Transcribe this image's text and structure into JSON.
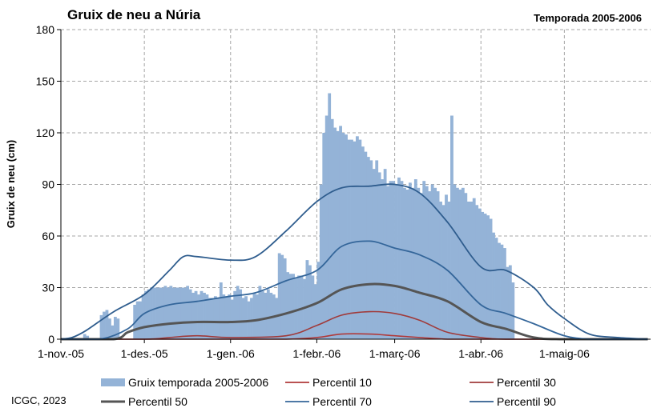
{
  "header": {
    "title": "Gruix de neu a Núria",
    "season": "Temporada 2005-2006"
  },
  "credit": "ICGC, 2023",
  "colors": {
    "bars": "#94b3d7",
    "p10": "#b03a3a",
    "p30": "#a03b3b",
    "p50": "#555555",
    "p70": "#34669a",
    "p90": "#2f5d8e",
    "grid": "#a6a6a6"
  },
  "chart_data": {
    "type": "bar",
    "title": "Gruix de neu a Núria",
    "subtitle": "Temporada 2005-2006",
    "xlabel": "",
    "ylabel": "Gruix de neu (cm)",
    "ylim": [
      0,
      180
    ],
    "yticks": [
      0,
      30,
      60,
      90,
      120,
      150,
      180
    ],
    "xlim": [
      "2005-11-01",
      "2006-05-31"
    ],
    "xticks": [
      {
        "date": "2005-11-01",
        "label": "1-nov.-05"
      },
      {
        "date": "2005-12-01",
        "label": "1-des.-05"
      },
      {
        "date": "2006-01-01",
        "label": "1-gen.-06"
      },
      {
        "date": "2006-02-01",
        "label": "1-febr.-06"
      },
      {
        "date": "2006-03-01",
        "label": "1-març-06"
      },
      {
        "date": "2006-04-01",
        "label": "1-abr.-06"
      },
      {
        "date": "2006-05-01",
        "label": "1-maig-06"
      }
    ],
    "grid": true,
    "legend_position": "bottom",
    "series": [
      {
        "name": "Gruix temporada 2005-2006",
        "type": "bar",
        "x": [
          "2005-11-09",
          "2005-11-10",
          "2005-11-11",
          "2005-11-15",
          "2005-11-16",
          "2005-11-17",
          "2005-11-18",
          "2005-11-19",
          "2005-11-20",
          "2005-11-21",
          "2005-11-27",
          "2005-11-28",
          "2005-11-29",
          "2005-11-30",
          "2005-12-01",
          "2005-12-02",
          "2005-12-03",
          "2005-12-04",
          "2005-12-05",
          "2005-12-06",
          "2005-12-07",
          "2005-12-08",
          "2005-12-09",
          "2005-12-10",
          "2005-12-11",
          "2005-12-12",
          "2005-12-13",
          "2005-12-14",
          "2005-12-15",
          "2005-12-16",
          "2005-12-17",
          "2005-12-18",
          "2005-12-19",
          "2005-12-20",
          "2005-12-21",
          "2005-12-22",
          "2005-12-23",
          "2005-12-24",
          "2005-12-25",
          "2005-12-26",
          "2005-12-27",
          "2005-12-28",
          "2005-12-29",
          "2005-12-30",
          "2005-12-31",
          "2006-01-01",
          "2006-01-02",
          "2006-01-03",
          "2006-01-04",
          "2006-01-05",
          "2006-01-06",
          "2006-01-07",
          "2006-01-08",
          "2006-01-09",
          "2006-01-10",
          "2006-01-11",
          "2006-01-12",
          "2006-01-13",
          "2006-01-14",
          "2006-01-15",
          "2006-01-16",
          "2006-01-17",
          "2006-01-18",
          "2006-01-19",
          "2006-01-20",
          "2006-01-21",
          "2006-01-22",
          "2006-01-23",
          "2006-01-24",
          "2006-01-25",
          "2006-01-26",
          "2006-01-27",
          "2006-01-28",
          "2006-01-29",
          "2006-01-30",
          "2006-01-31",
          "2006-02-01",
          "2006-02-02",
          "2006-02-03",
          "2006-02-04",
          "2006-02-05",
          "2006-02-06",
          "2006-02-07",
          "2006-02-08",
          "2006-02-09",
          "2006-02-10",
          "2006-02-11",
          "2006-02-12",
          "2006-02-13",
          "2006-02-14",
          "2006-02-15",
          "2006-02-16",
          "2006-02-17",
          "2006-02-18",
          "2006-02-19",
          "2006-02-20",
          "2006-02-21",
          "2006-02-22",
          "2006-02-23",
          "2006-02-24",
          "2006-02-25",
          "2006-02-26",
          "2006-02-27",
          "2006-02-28",
          "2006-03-01",
          "2006-03-02",
          "2006-03-03",
          "2006-03-04",
          "2006-03-05",
          "2006-03-06",
          "2006-03-07",
          "2006-03-08",
          "2006-03-09",
          "2006-03-10",
          "2006-03-11",
          "2006-03-12",
          "2006-03-13",
          "2006-03-14",
          "2006-03-15",
          "2006-03-16",
          "2006-03-17",
          "2006-03-18",
          "2006-03-19",
          "2006-03-20",
          "2006-03-21",
          "2006-03-22",
          "2006-03-23",
          "2006-03-24",
          "2006-03-25",
          "2006-03-26",
          "2006-03-27",
          "2006-03-28",
          "2006-03-29",
          "2006-03-30",
          "2006-03-31",
          "2006-04-01",
          "2006-04-02",
          "2006-04-03",
          "2006-04-04",
          "2006-04-05",
          "2006-04-06",
          "2006-04-07",
          "2006-04-08",
          "2006-04-09",
          "2006-04-10",
          "2006-04-11",
          "2006-04-12"
        ],
        "values": [
          3,
          2,
          0,
          14,
          16,
          17,
          12,
          8,
          13,
          12,
          20,
          22,
          22,
          26,
          28,
          29,
          30,
          30,
          30,
          30,
          30,
          31,
          30,
          31,
          30,
          30,
          30,
          30,
          30,
          31,
          29,
          27,
          28,
          26,
          28,
          27,
          26,
          24,
          24,
          25,
          24,
          33,
          26,
          25,
          26,
          23,
          28,
          31,
          29,
          24,
          25,
          22,
          24,
          27,
          26,
          31,
          28,
          27,
          29,
          27,
          26,
          24,
          50,
          49,
          47,
          39,
          38,
          38,
          36,
          37,
          37,
          35,
          46,
          43,
          37,
          32,
          45,
          90,
          120,
          130,
          143,
          128,
          123,
          121,
          124,
          120,
          119,
          116,
          116,
          115,
          118,
          116,
          112,
          109,
          106,
          104,
          99,
          104,
          97,
          93,
          99,
          89,
          92,
          92,
          90,
          94,
          92,
          88,
          87,
          91,
          88,
          93,
          88,
          85,
          92,
          89,
          86,
          90,
          88,
          86,
          80,
          78,
          84,
          80,
          130,
          90,
          88,
          87,
          88,
          85,
          80,
          80,
          82,
          78,
          76,
          74,
          73,
          72,
          70,
          62,
          59,
          56,
          55,
          53,
          42,
          43,
          33
        ]
      },
      {
        "name": "Percentil 10",
        "type": "line",
        "x": [
          "2005-11-01",
          "2005-12-01",
          "2006-01-01",
          "2006-01-21",
          "2006-02-01",
          "2006-02-10",
          "2006-02-20",
          "2006-03-01",
          "2006-03-10",
          "2006-03-20",
          "2006-04-01",
          "2006-05-01",
          "2006-05-31"
        ],
        "values": [
          0,
          0,
          0,
          0,
          1,
          3,
          3,
          2,
          1,
          0,
          0,
          0,
          0
        ]
      },
      {
        "name": "Percentil 30",
        "type": "line",
        "x": [
          "2005-11-01",
          "2005-12-01",
          "2005-12-10",
          "2005-12-20",
          "2006-01-01",
          "2006-01-21",
          "2006-02-01",
          "2006-02-10",
          "2006-02-20",
          "2006-03-01",
          "2006-03-10",
          "2006-03-20",
          "2006-04-01",
          "2006-04-10",
          "2006-05-01",
          "2006-05-31"
        ],
        "values": [
          0,
          0,
          1,
          2,
          1,
          2,
          8,
          14,
          16,
          15,
          11,
          4,
          1,
          0,
          0,
          0
        ]
      },
      {
        "name": "Percentil 50",
        "type": "line",
        "x": [
          "2005-11-01",
          "2005-11-20",
          "2005-11-25",
          "2005-12-01",
          "2005-12-10",
          "2005-12-20",
          "2006-01-01",
          "2006-01-10",
          "2006-01-21",
          "2006-02-01",
          "2006-02-10",
          "2006-02-20",
          "2006-03-01",
          "2006-03-10",
          "2006-03-20",
          "2006-04-01",
          "2006-04-10",
          "2006-04-20",
          "2006-05-01",
          "2006-05-31"
        ],
        "values": [
          0,
          0,
          4,
          7,
          9,
          10,
          10,
          11,
          15,
          21,
          29,
          32,
          31,
          27,
          22,
          10,
          6,
          1,
          0,
          0
        ]
      },
      {
        "name": "Percentil 70",
        "type": "line",
        "x": [
          "2005-11-01",
          "2005-11-15",
          "2005-11-25",
          "2005-12-01",
          "2005-12-10",
          "2005-12-20",
          "2006-01-01",
          "2006-01-10",
          "2006-01-21",
          "2006-02-01",
          "2006-02-10",
          "2006-02-20",
          "2006-03-01",
          "2006-03-10",
          "2006-03-20",
          "2006-04-01",
          "2006-04-10",
          "2006-04-20",
          "2006-05-01",
          "2006-05-10",
          "2006-05-20",
          "2006-05-31"
        ],
        "values": [
          0,
          0,
          6,
          15,
          20,
          22,
          25,
          27,
          34,
          40,
          54,
          57,
          53,
          49,
          40,
          20,
          15,
          9,
          2,
          0,
          0,
          0
        ]
      },
      {
        "name": "Percentil 90",
        "type": "line",
        "x": [
          "2005-11-01",
          "2005-11-05",
          "2005-11-10",
          "2005-11-20",
          "2005-12-01",
          "2005-12-10",
          "2005-12-15",
          "2005-12-20",
          "2006-01-01",
          "2006-01-10",
          "2006-01-21",
          "2006-02-01",
          "2006-02-10",
          "2006-02-20",
          "2006-03-01",
          "2006-03-10",
          "2006-03-20",
          "2006-04-01",
          "2006-04-10",
          "2006-04-20",
          "2006-04-25",
          "2006-05-01",
          "2006-05-10",
          "2006-05-20",
          "2006-05-31"
        ],
        "values": [
          0,
          1,
          5,
          16,
          26,
          40,
          48,
          48,
          46,
          48,
          63,
          80,
          88,
          89,
          90,
          85,
          68,
          42,
          40,
          30,
          20,
          12,
          3,
          1,
          0
        ]
      }
    ]
  },
  "legend": [
    {
      "key": "bar",
      "label": "Gruix temporada 2005-2006"
    },
    {
      "key": "p10",
      "label": "Percentil 10"
    },
    {
      "key": "p30",
      "label": "Percentil 30"
    },
    {
      "key": "p50",
      "label": "Percentil 50"
    },
    {
      "key": "p70",
      "label": "Percentil 70"
    },
    {
      "key": "p90",
      "label": "Percentil 90"
    }
  ]
}
